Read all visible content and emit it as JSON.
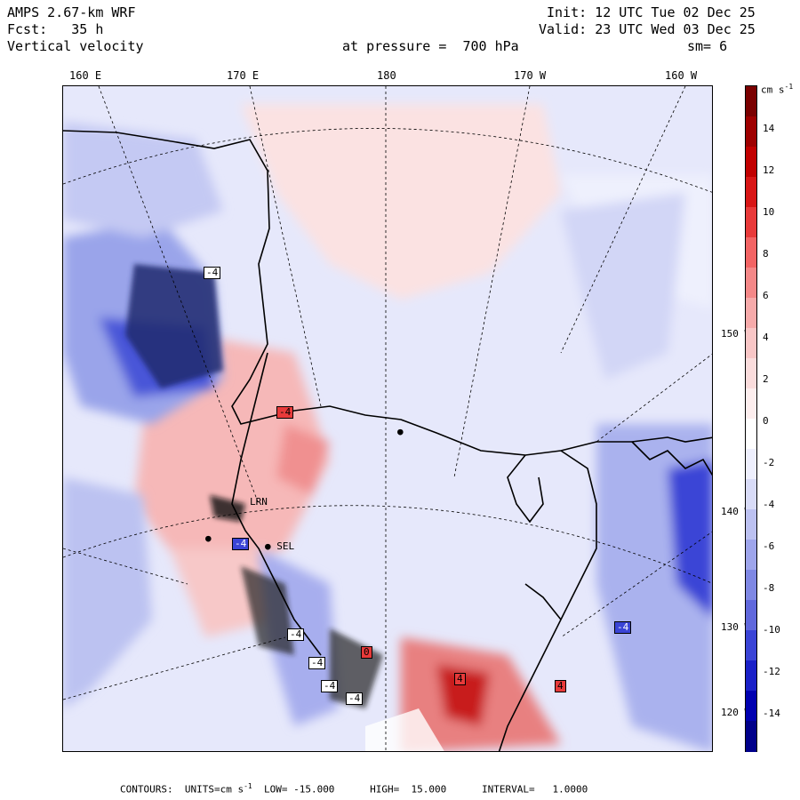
{
  "header": {
    "model": "AMPS 2.67-km WRF",
    "fcst_label": "Fcst:",
    "fcst_value": "35 h",
    "field": "Vertical velocity",
    "init": "Init: 12 UTC Tue 02 Dec 25",
    "valid": "Valid: 23 UTC Wed 03 Dec 25",
    "level": "at pressure =  700 hPa",
    "smooth": "sm= 6"
  },
  "longitude_labels": [
    "160 E",
    "170 E",
    "180",
    "170 W",
    "160 W"
  ],
  "latitude_labels": [
    "150 W",
    "140 W",
    "130 W",
    "120 W"
  ],
  "stations": [
    "SEL",
    "LRN"
  ],
  "value_labels": [
    "-4",
    "-4",
    "-4",
    "-4",
    "-4",
    "-4",
    "4",
    "4",
    "-4",
    "-4",
    "0"
  ],
  "colorbar": {
    "unit": "cm s",
    "unit_exponent": "-1",
    "ticks": [
      "14",
      "12",
      "10",
      "8",
      "6",
      "4",
      "2",
      "0",
      "-2",
      "-4",
      "-6",
      "-8",
      "-10",
      "-12",
      "-14"
    ],
    "colors": [
      "#7a0000",
      "#9e0000",
      "#c10000",
      "#d81616",
      "#e83a3a",
      "#f26464",
      "#f48888",
      "#f6aaaa",
      "#f8c6c6",
      "#fadcdc",
      "#fdeeee",
      "#ffffff",
      "#eeeffd",
      "#d8dbf7",
      "#bcc1f1",
      "#9ea5eb",
      "#7f88e4",
      "#6068dc",
      "#3a44d6",
      "#1a20c8",
      "#0000b0",
      "#00008a"
    ]
  },
  "footer": {
    "text": "CONTOURS:  UNITS=cm s",
    "exp": "-1",
    "rest": "  LOW= -15.000      HIGH=  15.000      INTERVAL=   1.0000"
  }
}
